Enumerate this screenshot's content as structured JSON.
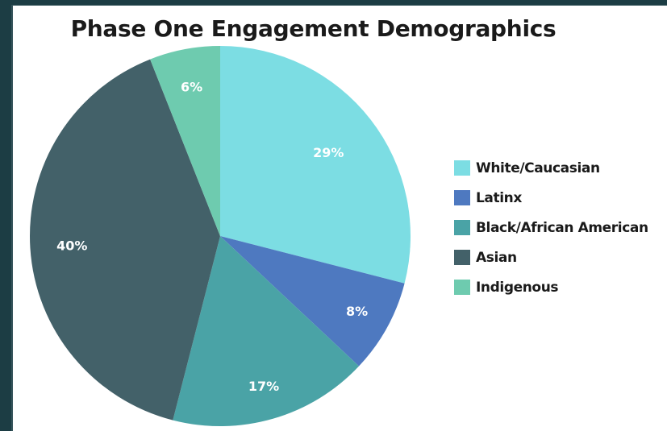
{
  "chart_data": {
    "type": "pie",
    "title": "Phase One Engagement Demographics",
    "categories": [
      "White/Caucasian",
      "Latinx",
      "Black/African American",
      "Asian",
      "Indigenous"
    ],
    "values": [
      29,
      8,
      17,
      40,
      6
    ],
    "labels": [
      "29%",
      "8%",
      "17%",
      "40%",
      "6%"
    ],
    "colors": [
      "#7cdde3",
      "#4e79c0",
      "#4aa3a6",
      "#436169",
      "#6ecbaf"
    ],
    "legend_position": "right",
    "start_angle": "12 o'clock, clockwise"
  }
}
